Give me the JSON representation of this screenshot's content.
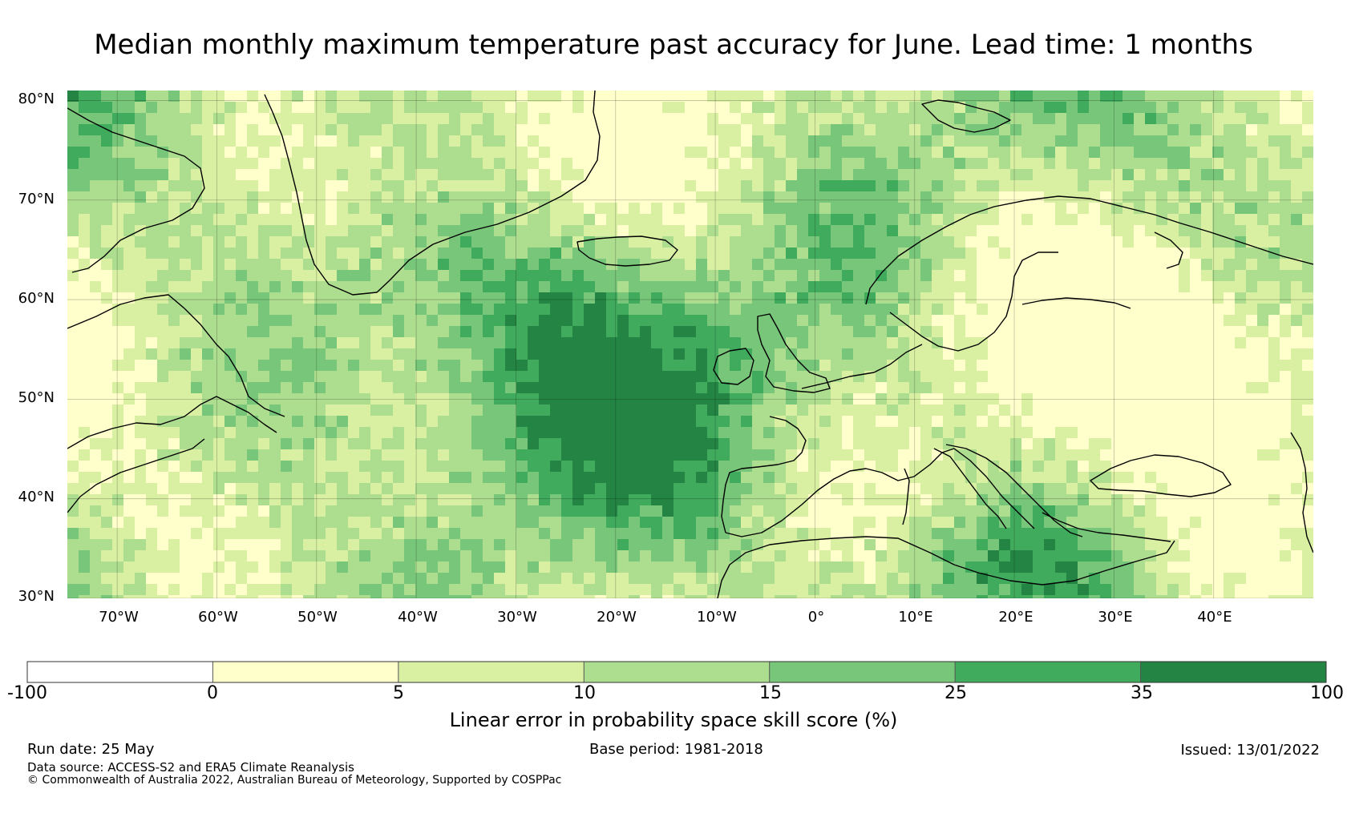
{
  "title": "Median monthly maximum temperature past accuracy for June. Lead time: 1 months",
  "map": {
    "latitude_labels": [
      "80°N",
      "70°N",
      "60°N",
      "50°N",
      "40°N",
      "30°N"
    ],
    "longitude_labels": [
      "70°W",
      "60°W",
      "50°W",
      "40°W",
      "30°W",
      "20°W",
      "10°W",
      "0°",
      "10°E",
      "20°E",
      "30°E",
      "40°E"
    ],
    "extent": {
      "lon_min": -75,
      "lon_max": 50,
      "lat_min": 30,
      "lat_max": 81
    }
  },
  "colorbar": {
    "ticks": [
      "-100",
      "0",
      "5",
      "10",
      "15",
      "25",
      "35",
      "100"
    ],
    "bins": [
      {
        "from": -100,
        "to": 0,
        "color": "#ffffff"
      },
      {
        "from": 0,
        "to": 5,
        "color": "#ffffcc"
      },
      {
        "from": 5,
        "to": 10,
        "color": "#d9f0a3"
      },
      {
        "from": 10,
        "to": 15,
        "color": "#addd8e"
      },
      {
        "from": 15,
        "to": 25,
        "color": "#78c679"
      },
      {
        "from": 25,
        "to": 35,
        "color": "#41ab5d"
      },
      {
        "from": 35,
        "to": 100,
        "color": "#238443"
      }
    ],
    "label": "Linear error in probability space skill score (%)"
  },
  "footer": {
    "run_date": "Run date: 25 May",
    "base_period": "Base period: 1981-2018",
    "issued": "Issued: 13/01/2022",
    "data_source": "Data source: ACCESS-S2 and ERA5 Climate Reanalysis",
    "copyright": "© Commonwealth of Australia 2022, Australian Bureau of Meteorology, Supported by COSPPac"
  }
}
